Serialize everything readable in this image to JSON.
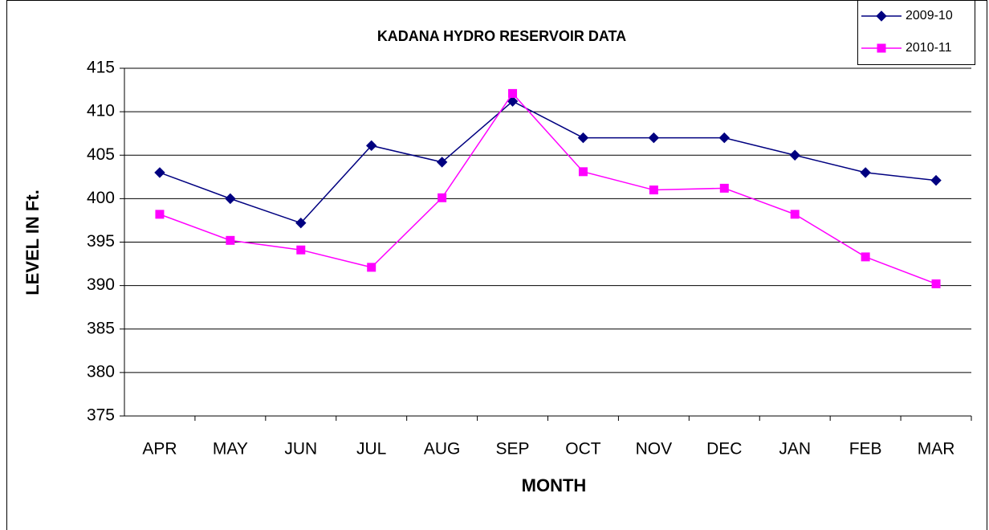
{
  "chart_data": {
    "type": "line",
    "title": "KADANA HYDRO RESERVOIR DATA",
    "x_label": "MONTH",
    "y_label": "LEVEL IN Ft.",
    "categories": [
      "APR",
      "MAY",
      "JUN",
      "JUL",
      "AUG",
      "SEP",
      "OCT",
      "NOV",
      "DEC",
      "JAN",
      "FEB",
      "MAR"
    ],
    "series": [
      {
        "name": "2009-10",
        "color": "#000080",
        "marker": "diamond",
        "values": [
          403,
          400,
          397.2,
          406.1,
          404.2,
          411.2,
          407,
          407,
          407,
          405,
          403,
          402.1
        ]
      },
      {
        "name": "2010-11",
        "color": "#ff00ff",
        "marker": "square",
        "values": [
          398.2,
          395.2,
          394.1,
          392.1,
          400.1,
          412.1,
          403.1,
          401,
          401.2,
          398.2,
          393.3,
          390.2
        ]
      }
    ],
    "ylim": [
      375,
      415
    ],
    "yticks": [
      375,
      380,
      385,
      390,
      395,
      400,
      405,
      410,
      415
    ],
    "grid": true,
    "legend": "top-right"
  }
}
